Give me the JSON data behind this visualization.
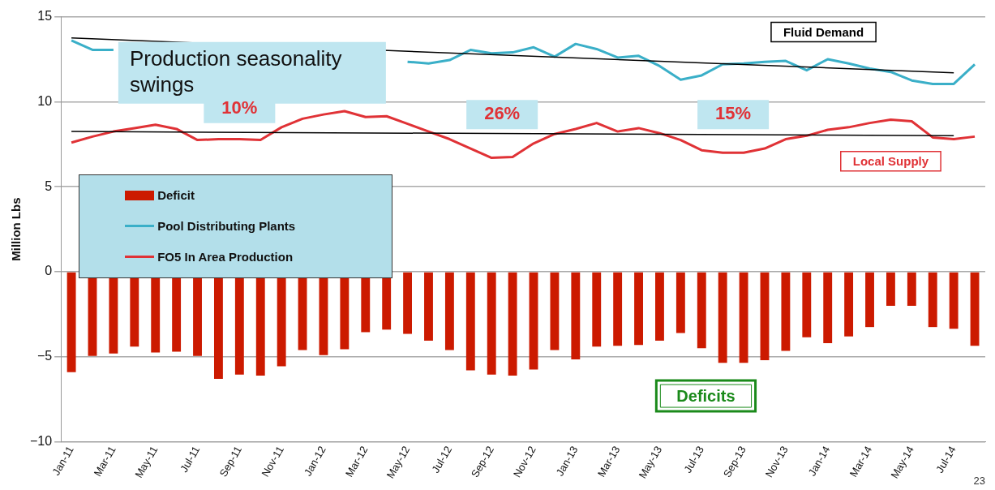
{
  "chart_data": {
    "type": "bar",
    "ylabel": "Million Lbs",
    "categories": [
      "Jan-11",
      null,
      "Mar-11",
      null,
      "May-11",
      null,
      "Jul-11",
      null,
      "Sep-11",
      null,
      "Nov-11",
      null,
      "Jan-12",
      null,
      "Mar-12",
      null,
      "May-12",
      null,
      "Jul-12",
      null,
      "Sep-12",
      null,
      "Nov-12",
      null,
      "Jan-13",
      null,
      "Mar-13",
      null,
      "May-13",
      null,
      "Jul-13",
      null,
      "Sep-13",
      null,
      "Nov-13",
      null,
      "Jan-14",
      null,
      "Mar-14",
      null,
      "May-14",
      null,
      "Jul-14",
      null
    ],
    "series": [
      {
        "name": "Deficit",
        "color": "#cc1a00",
        "values": [
          -5.9,
          -4.95,
          -4.8,
          -4.4,
          -4.75,
          -4.7,
          -4.95,
          -6.3,
          -6.05,
          -6.1,
          -5.55,
          -4.6,
          -4.9,
          -4.55,
          -3.55,
          -3.4,
          -3.65,
          -4.05,
          -4.6,
          -5.8,
          -6.05,
          -6.1,
          -5.75,
          -4.6,
          -5.15,
          -4.4,
          -4.35,
          -4.3,
          -4.05,
          -3.6,
          -4.5,
          -5.35,
          -5.35,
          -5.2,
          -4.65,
          -3.85,
          -4.2,
          -3.8,
          -3.25,
          -2,
          -2,
          -3.25,
          -3.35,
          -4.35
        ]
      },
      {
        "name": "Pool Distributing Plants",
        "type": "line",
        "color": "#3aafc8",
        "values": [
          13.6,
          13.05,
          13.05,
          null,
          null,
          null,
          null,
          null,
          null,
          null,
          null,
          null,
          null,
          null,
          null,
          null,
          12.35,
          12.25,
          12.45,
          13.05,
          12.85,
          12.9,
          13.2,
          12.65,
          13.4,
          13.1,
          12.6,
          12.7,
          12.1,
          11.3,
          11.55,
          12.2,
          12.25,
          12.35,
          12.4,
          11.85,
          12.5,
          12.25,
          11.95,
          11.75,
          11.25,
          11.05,
          11.05,
          12.2
        ]
      },
      {
        "name": "FO5 In Area Production",
        "type": "line",
        "color": "#e03236",
        "values": [
          7.6,
          7.95,
          8.25,
          8.45,
          8.65,
          8.4,
          7.75,
          7.8,
          7.8,
          7.75,
          8.5,
          9,
          9.25,
          9.45,
          9.1,
          9.15,
          8.7,
          8.25,
          7.8,
          7.25,
          6.7,
          6.75,
          7.55,
          8.1,
          8.4,
          8.75,
          8.25,
          8.45,
          8.15,
          7.75,
          7.15,
          7,
          7,
          7.25,
          7.8,
          8,
          8.35,
          8.5,
          8.75,
          8.95,
          8.85,
          7.9,
          7.8,
          7.95
        ]
      },
      {
        "type": "line",
        "color": "#000000",
        "x": [
          "Jan-11",
          "Jul-14"
        ],
        "values": [
          13.75,
          11.7
        ]
      },
      {
        "type": "line",
        "color": "#000000",
        "x": [
          "Jan-11",
          "Jul-14"
        ],
        "values": [
          8.25,
          8
        ]
      }
    ],
    "ylim": [
      -10,
      15
    ],
    "yticks": [
      -10,
      -5,
      0,
      5,
      10,
      15
    ],
    "grid": "y",
    "legend": "left",
    "annotations": [
      "Production seasonality swings",
      "Fluid Demand",
      "10%",
      "26%",
      "15%",
      "Local Supply",
      "Deficits",
      "23"
    ]
  }
}
